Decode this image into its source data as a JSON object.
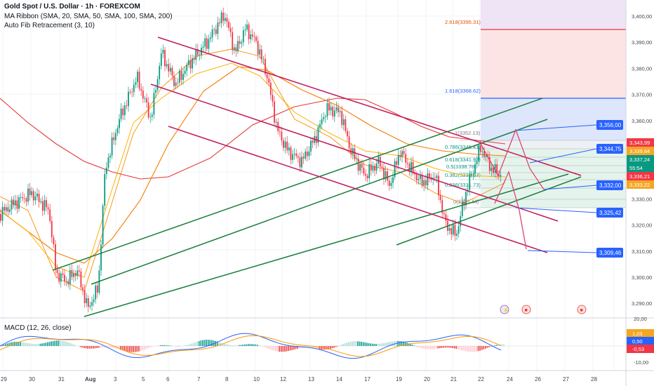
{
  "chart_title": "Gold Spot / U.S. Dollar · 1h · FOREXCOM",
  "indicators": {
    "ma_ribbon": "MA Ribbon (SMA, 20, SMA, 50, SMA, 100, SMA, 200)",
    "fib": "Auto Fib Retracement (3, 10)",
    "macd": "MACD (12, 26, close)"
  },
  "colors": {
    "bull": "#089981",
    "bear": "#f23645",
    "channel_green": "#1a7f3c",
    "channel_crimson": "#c2185b",
    "projection": "#e0446a",
    "target_line": "#2962ff"
  },
  "price_axis_labels": [
    "3,400,00",
    "3,390,00",
    "3,380,00",
    "3,370,00",
    "3,360,00",
    "3,350,00",
    "3,340,00",
    "3,330,00",
    "3,320,00",
    "3,310,00",
    "3,300,00",
    "3,290,00"
  ],
  "macd_axis_labels": [
    "20,00",
    "10,00",
    "-10,00"
  ],
  "time_axis_labels": [
    "29",
    "30",
    "31",
    "Aug",
    "3",
    "5",
    "6",
    "7",
    "8",
    "10",
    "12",
    "13",
    "14",
    "17",
    "19",
    "20",
    "21",
    "22",
    "24",
    "26",
    "27",
    "28"
  ],
  "fib_labels": [
    {
      "label": "2.618(3395.31)",
      "color": "#e65100"
    },
    {
      "label": "1.618(3368.62)",
      "color": "#2962ff"
    },
    {
      "label": "1(3352.13)",
      "color": "#787b86"
    },
    {
      "label": "0.786(3346.41)",
      "color": "#089981"
    },
    {
      "label": "0.618(3341.93)",
      "color": "#089981"
    },
    {
      "label": "0.5(3338.78)",
      "color": "#089981"
    },
    {
      "label": "0.382(3335.63)",
      "color": "#089981"
    },
    {
      "label": "0.236(3331.73)",
      "color": "#089981"
    },
    {
      "label": "0(3325.44)",
      "color": "#787b86"
    }
  ],
  "price_badges": [
    {
      "text": "3,343,99",
      "color": "#f23645"
    },
    {
      "text": "3,339,84",
      "color": "#f5a623"
    },
    {
      "text": "3,337,24",
      "color": "#089981"
    },
    {
      "text": "55:54",
      "color": "#089981"
    },
    {
      "text": "3,336,21",
      "color": "#f23645"
    },
    {
      "text": "3,333,22",
      "color": "#f5a623"
    }
  ],
  "target_labels": [
    "3,356,00",
    "3,344,75",
    "3,332,00",
    "3,325,42",
    "3,309,46"
  ],
  "macd_badges": [
    {
      "text": "1,03",
      "color": "#f5a623"
    },
    {
      "text": "0,50",
      "color": "#2962ff"
    },
    {
      "text": "-0,53",
      "color": "#f23645"
    }
  ],
  "event_icons": [
    "lightning-event-icon",
    "us-flag-event-icon",
    "us-flag-event-icon"
  ]
}
